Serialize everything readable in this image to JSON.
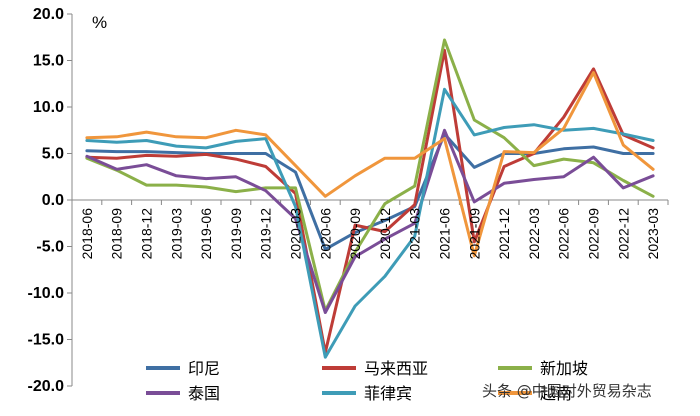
{
  "chart_data": {
    "type": "line",
    "unit_label": "%",
    "ylim": [
      -20,
      20
    ],
    "yticks": [
      "20.0",
      "15.0",
      "10.0",
      "5.0",
      "0.0",
      "-5.0",
      "-10.0",
      "-15.0",
      "-20.0"
    ],
    "ytick_values": [
      20,
      15,
      10,
      5,
      0,
      -5,
      -10,
      -15,
      -20
    ],
    "categories": [
      "2018-06",
      "2018-09",
      "2018-12",
      "2019-03",
      "2019-06",
      "2019-09",
      "2019-12",
      "2020-03",
      "2020-06",
      "2020-09",
      "2020-12",
      "2021-03",
      "2021-06",
      "2021-09",
      "2021-12",
      "2022-03",
      "2022-06",
      "2022-09",
      "2022-12",
      "2023-03"
    ],
    "series": [
      {
        "name": "印尼",
        "color": "#3F6FA3",
        "values": [
          5.3,
          5.2,
          5.2,
          5.1,
          5.0,
          5.0,
          5.0,
          3.0,
          -5.3,
          -3.5,
          -2.2,
          -0.7,
          7.1,
          3.5,
          5.0,
          5.0,
          5.5,
          5.7,
          5.0,
          5.0
        ]
      },
      {
        "name": "马来西亚",
        "color": "#BE3C37",
        "values": [
          4.6,
          4.5,
          4.8,
          4.7,
          4.9,
          4.4,
          3.6,
          0.7,
          -16.4,
          -2.7,
          -3.4,
          -0.5,
          16.1,
          -4.5,
          3.6,
          5.0,
          8.9,
          14.1,
          7.0,
          5.6
        ]
      },
      {
        "name": "新加坡",
        "color": "#8BB049",
        "values": [
          4.5,
          3.2,
          1.6,
          1.6,
          1.4,
          0.9,
          1.3,
          1.3,
          -11.9,
          -5.6,
          -0.4,
          1.5,
          17.2,
          8.6,
          6.7,
          3.7,
          4.4,
          4.0,
          2.1,
          0.4
        ]
      },
      {
        "name": "泰国",
        "color": "#7A4D97",
        "values": [
          4.7,
          3.3,
          3.8,
          2.6,
          2.3,
          2.5,
          1.0,
          -2.0,
          -12.1,
          -6.1,
          -4.2,
          -2.5,
          7.5,
          -0.2,
          1.8,
          2.2,
          2.5,
          4.6,
          1.3,
          2.6
        ]
      },
      {
        "name": "菲律宾",
        "color": "#3E9CB7",
        "values": [
          6.4,
          6.2,
          6.4,
          5.8,
          5.6,
          6.3,
          6.6,
          -0.7,
          -16.9,
          -11.4,
          -8.2,
          -3.9,
          11.9,
          7.0,
          7.8,
          8.1,
          7.5,
          7.7,
          7.1,
          6.4
        ]
      },
      {
        "name": "越南",
        "color": "#F0963C",
        "values": [
          6.7,
          6.8,
          7.3,
          6.8,
          6.7,
          7.5,
          7.0,
          3.7,
          0.4,
          2.6,
          4.5,
          4.5,
          6.6,
          -6.0,
          5.2,
          5.1,
          7.7,
          13.7,
          5.9,
          3.3
        ]
      }
    ]
  },
  "watermark": "头条 @中国对外贸易杂志"
}
